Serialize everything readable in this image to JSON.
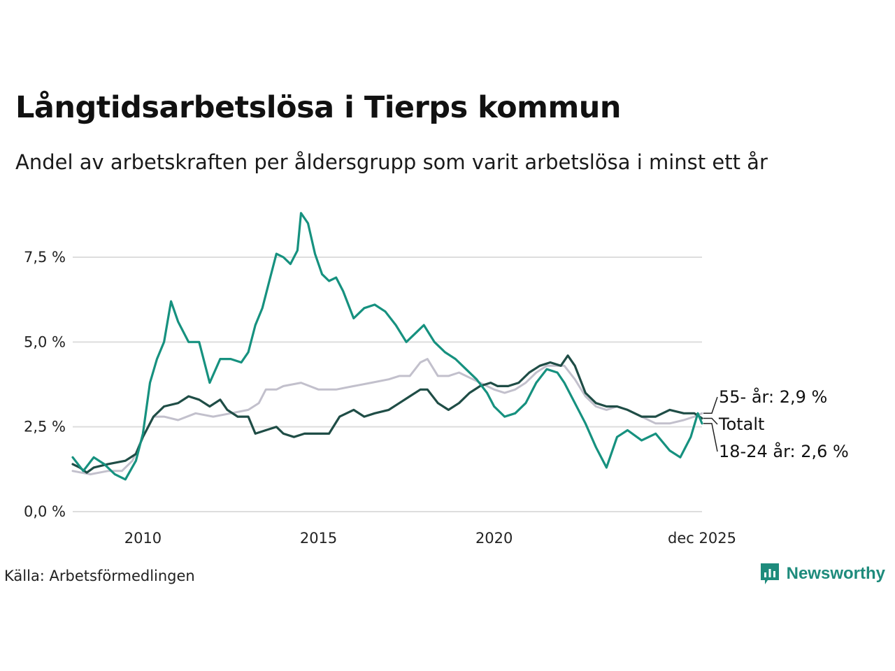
{
  "title": "Långtidsarbetslösa i Tierps kommun",
  "subtitle": "Andel av arbetskraften per åldersgrupp som varit arbetslösa i minst ett år",
  "source": "Källa: Arbetsförmedlingen",
  "brand": "Newsworthy",
  "colors": {
    "young": "#16917f",
    "total": "#1f4d46",
    "old": "#c2c0cc",
    "grid": "#dddddd",
    "brand": "#1e8b7c"
  },
  "chart_data": {
    "type": "line",
    "title": "Långtidsarbetslösa i Tierps kommun",
    "xlabel": "",
    "ylabel": "",
    "x_range": [
      2008.0,
      2025.92
    ],
    "ylim": [
      0,
      9
    ],
    "y_ticks": [
      {
        "value": 0,
        "label": "0,0 %"
      },
      {
        "value": 2.5,
        "label": "2,5 %"
      },
      {
        "value": 5.0,
        "label": "5,0 %"
      },
      {
        "value": 7.5,
        "label": "7,5 %"
      }
    ],
    "x_ticks": [
      {
        "value": 2010,
        "label": "2010"
      },
      {
        "value": 2015,
        "label": "2015"
      },
      {
        "value": 2020,
        "label": "2020"
      },
      {
        "value": 2025.92,
        "label": "dec 2025"
      }
    ],
    "grid": true,
    "series": [
      {
        "name": "55- år",
        "color_key": "old",
        "end_label": "55- år: 2,9 %",
        "points": [
          [
            2008.0,
            1.2
          ],
          [
            2008.5,
            1.1
          ],
          [
            2009.0,
            1.2
          ],
          [
            2009.4,
            1.2
          ],
          [
            2009.7,
            1.5
          ],
          [
            2010.0,
            2.2
          ],
          [
            2010.3,
            2.8
          ],
          [
            2010.6,
            2.8
          ],
          [
            2011.0,
            2.7
          ],
          [
            2011.5,
            2.9
          ],
          [
            2012.0,
            2.8
          ],
          [
            2012.5,
            2.9
          ],
          [
            2013.0,
            3.0
          ],
          [
            2013.3,
            3.2
          ],
          [
            2013.5,
            3.6
          ],
          [
            2013.8,
            3.6
          ],
          [
            2014.0,
            3.7
          ],
          [
            2014.5,
            3.8
          ],
          [
            2015.0,
            3.6
          ],
          [
            2015.5,
            3.6
          ],
          [
            2016.0,
            3.7
          ],
          [
            2016.5,
            3.8
          ],
          [
            2017.0,
            3.9
          ],
          [
            2017.3,
            4.0
          ],
          [
            2017.6,
            4.0
          ],
          [
            2017.9,
            4.4
          ],
          [
            2018.1,
            4.5
          ],
          [
            2018.4,
            4.0
          ],
          [
            2018.7,
            4.0
          ],
          [
            2019.0,
            4.1
          ],
          [
            2019.4,
            3.9
          ],
          [
            2019.8,
            3.7
          ],
          [
            2020.0,
            3.6
          ],
          [
            2020.3,
            3.5
          ],
          [
            2020.6,
            3.6
          ],
          [
            2020.9,
            3.8
          ],
          [
            2021.2,
            4.1
          ],
          [
            2021.5,
            4.3
          ],
          [
            2021.8,
            4.3
          ],
          [
            2022.0,
            4.3
          ],
          [
            2022.3,
            3.9
          ],
          [
            2022.6,
            3.4
          ],
          [
            2022.9,
            3.1
          ],
          [
            2023.2,
            3.0
          ],
          [
            2023.5,
            3.1
          ],
          [
            2023.8,
            3.0
          ],
          [
            2024.2,
            2.8
          ],
          [
            2024.6,
            2.6
          ],
          [
            2025.0,
            2.6
          ],
          [
            2025.4,
            2.7
          ],
          [
            2025.7,
            2.8
          ],
          [
            2025.92,
            2.9
          ]
        ]
      },
      {
        "name": "Totalt",
        "color_key": "total",
        "end_label": "Totalt",
        "points": [
          [
            2008.0,
            1.4
          ],
          [
            2008.2,
            1.3
          ],
          [
            2008.4,
            1.15
          ],
          [
            2008.6,
            1.3
          ],
          [
            2009.0,
            1.4
          ],
          [
            2009.5,
            1.5
          ],
          [
            2009.8,
            1.7
          ],
          [
            2010.0,
            2.2
          ],
          [
            2010.3,
            2.8
          ],
          [
            2010.6,
            3.1
          ],
          [
            2011.0,
            3.2
          ],
          [
            2011.3,
            3.4
          ],
          [
            2011.6,
            3.3
          ],
          [
            2011.9,
            3.1
          ],
          [
            2012.2,
            3.3
          ],
          [
            2012.4,
            3.0
          ],
          [
            2012.7,
            2.8
          ],
          [
            2013.0,
            2.8
          ],
          [
            2013.2,
            2.3
          ],
          [
            2013.5,
            2.4
          ],
          [
            2013.8,
            2.5
          ],
          [
            2014.0,
            2.3
          ],
          [
            2014.3,
            2.2
          ],
          [
            2014.6,
            2.3
          ],
          [
            2015.0,
            2.3
          ],
          [
            2015.3,
            2.3
          ],
          [
            2015.6,
            2.8
          ],
          [
            2016.0,
            3.0
          ],
          [
            2016.3,
            2.8
          ],
          [
            2016.6,
            2.9
          ],
          [
            2017.0,
            3.0
          ],
          [
            2017.3,
            3.2
          ],
          [
            2017.6,
            3.4
          ],
          [
            2017.9,
            3.6
          ],
          [
            2018.1,
            3.6
          ],
          [
            2018.4,
            3.2
          ],
          [
            2018.7,
            3.0
          ],
          [
            2019.0,
            3.2
          ],
          [
            2019.3,
            3.5
          ],
          [
            2019.6,
            3.7
          ],
          [
            2019.9,
            3.8
          ],
          [
            2020.1,
            3.7
          ],
          [
            2020.4,
            3.7
          ],
          [
            2020.7,
            3.8
          ],
          [
            2021.0,
            4.1
          ],
          [
            2021.3,
            4.3
          ],
          [
            2021.6,
            4.4
          ],
          [
            2021.9,
            4.3
          ],
          [
            2022.1,
            4.6
          ],
          [
            2022.3,
            4.3
          ],
          [
            2022.6,
            3.5
          ],
          [
            2022.9,
            3.2
          ],
          [
            2023.2,
            3.1
          ],
          [
            2023.5,
            3.1
          ],
          [
            2023.8,
            3.0
          ],
          [
            2024.2,
            2.8
          ],
          [
            2024.6,
            2.8
          ],
          [
            2025.0,
            3.0
          ],
          [
            2025.4,
            2.9
          ],
          [
            2025.7,
            2.9
          ],
          [
            2025.92,
            2.75
          ]
        ]
      },
      {
        "name": "18-24 år",
        "color_key": "young",
        "end_label": "18-24 år: 2,6 %",
        "points": [
          [
            2008.0,
            1.6
          ],
          [
            2008.3,
            1.2
          ],
          [
            2008.6,
            1.6
          ],
          [
            2008.9,
            1.4
          ],
          [
            2009.2,
            1.1
          ],
          [
            2009.5,
            0.95
          ],
          [
            2009.8,
            1.5
          ],
          [
            2010.0,
            2.3
          ],
          [
            2010.2,
            3.8
          ],
          [
            2010.4,
            4.5
          ],
          [
            2010.6,
            5.0
          ],
          [
            2010.8,
            6.2
          ],
          [
            2011.0,
            5.6
          ],
          [
            2011.3,
            5.0
          ],
          [
            2011.6,
            5.0
          ],
          [
            2011.9,
            3.8
          ],
          [
            2012.2,
            4.5
          ],
          [
            2012.5,
            4.5
          ],
          [
            2012.8,
            4.4
          ],
          [
            2013.0,
            4.7
          ],
          [
            2013.2,
            5.5
          ],
          [
            2013.4,
            6.0
          ],
          [
            2013.6,
            6.8
          ],
          [
            2013.8,
            7.6
          ],
          [
            2014.0,
            7.5
          ],
          [
            2014.2,
            7.3
          ],
          [
            2014.4,
            7.7
          ],
          [
            2014.5,
            8.8
          ],
          [
            2014.7,
            8.5
          ],
          [
            2014.9,
            7.6
          ],
          [
            2015.1,
            7.0
          ],
          [
            2015.3,
            6.8
          ],
          [
            2015.5,
            6.9
          ],
          [
            2015.7,
            6.5
          ],
          [
            2016.0,
            5.7
          ],
          [
            2016.3,
            6.0
          ],
          [
            2016.6,
            6.1
          ],
          [
            2016.9,
            5.9
          ],
          [
            2017.2,
            5.5
          ],
          [
            2017.5,
            5.0
          ],
          [
            2017.8,
            5.3
          ],
          [
            2018.0,
            5.5
          ],
          [
            2018.3,
            5.0
          ],
          [
            2018.6,
            4.7
          ],
          [
            2018.9,
            4.5
          ],
          [
            2019.2,
            4.2
          ],
          [
            2019.5,
            3.9
          ],
          [
            2019.8,
            3.5
          ],
          [
            2020.0,
            3.1
          ],
          [
            2020.3,
            2.8
          ],
          [
            2020.6,
            2.9
          ],
          [
            2020.9,
            3.2
          ],
          [
            2021.2,
            3.8
          ],
          [
            2021.5,
            4.2
          ],
          [
            2021.8,
            4.1
          ],
          [
            2022.0,
            3.8
          ],
          [
            2022.3,
            3.2
          ],
          [
            2022.6,
            2.6
          ],
          [
            2022.9,
            1.9
          ],
          [
            2023.2,
            1.3
          ],
          [
            2023.5,
            2.2
          ],
          [
            2023.8,
            2.4
          ],
          [
            2024.2,
            2.1
          ],
          [
            2024.6,
            2.3
          ],
          [
            2025.0,
            1.8
          ],
          [
            2025.3,
            1.6
          ],
          [
            2025.6,
            2.2
          ],
          [
            2025.8,
            2.9
          ],
          [
            2025.92,
            2.6
          ]
        ]
      }
    ]
  }
}
